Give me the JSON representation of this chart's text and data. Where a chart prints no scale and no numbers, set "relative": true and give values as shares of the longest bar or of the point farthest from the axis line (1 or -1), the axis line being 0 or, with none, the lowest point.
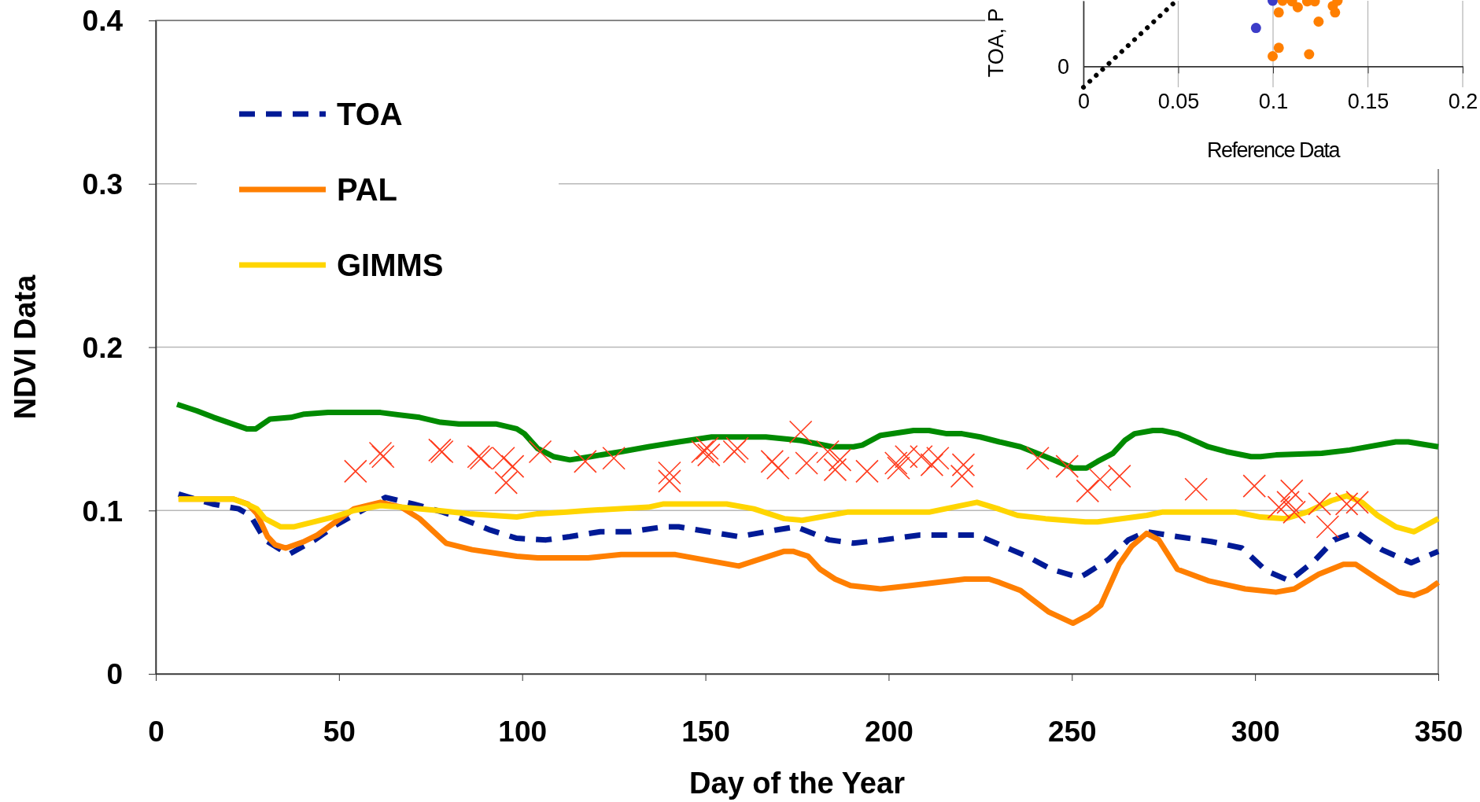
{
  "chart_data": [
    {
      "type": "line",
      "xlabel": "Day of the Year",
      "ylabel": "NDVI Data",
      "xlim": [
        0,
        350
      ],
      "ylim": [
        0,
        0.4
      ],
      "xticks": [
        0,
        50,
        100,
        150,
        200,
        250,
        300,
        350
      ],
      "yticks": [
        0,
        0.1,
        0.2,
        0.3,
        0.4
      ],
      "grid": "y",
      "legend": "top left",
      "series": [
        {
          "color": "#008a00",
          "line_style": "solid",
          "x": [
            5.8,
            11.2,
            15.8,
            24.8,
            27.3,
            31.2,
            36.9,
            40.5,
            47,
            61.3,
            72,
            77.7,
            82.7,
            92.8,
            98.5,
            100.6,
            104.2,
            108.5,
            113,
            118.7,
            127,
            134.4,
            142.7,
            151.7,
            166.5,
            175.6,
            184.6,
            190.4,
            192.8,
            197.8,
            206.8,
            211,
            215.9,
            220,
            225,
            230.2,
            236,
            242.8,
            250.3,
            254,
            257,
            261.2,
            264.5,
            267.1,
            272.1,
            274.6,
            278.8,
            282.2,
            287.2,
            292.2,
            298.9,
            301.5,
            305.7,
            318.2,
            325.8,
            338.4,
            341.8,
            350
          ],
          "values": [
            0.165,
            0.161,
            0.157,
            0.15,
            0.15,
            0.156,
            0.157,
            0.159,
            0.16,
            0.16,
            0.157,
            0.154,
            0.153,
            0.153,
            0.15,
            0.147,
            0.138,
            0.133,
            0.131,
            0.133,
            0.136,
            0.139,
            0.142,
            0.145,
            0.145,
            0.143,
            0.139,
            0.139,
            0.14,
            0.146,
            0.149,
            0.149,
            0.147,
            0.147,
            0.145,
            0.142,
            0.139,
            0.133,
            0.126,
            0.126,
            0.13,
            0.135,
            0.143,
            0.147,
            0.149,
            0.149,
            0.147,
            0.144,
            0.139,
            0.136,
            0.133,
            0.133,
            0.134,
            0.135,
            0.137,
            0.142,
            0.142,
            0.139
          ]
        },
        {
          "name": "TOA",
          "color": "#001a96",
          "line_style": "dashed",
          "x": [
            6.2,
            15.5,
            22.6,
            25.8,
            29.8,
            36.2,
            43.4,
            49.1,
            62.7,
            70.2,
            78.4,
            83.5,
            91.3,
            98.5,
            106.5,
            113,
            121.3,
            129.5,
            138.6,
            142.7,
            150.9,
            159.1,
            169,
            174.7,
            183.8,
            190.4,
            198.6,
            208.5,
            215.1,
            224.1,
            233.5,
            237.7,
            244.4,
            252,
            253.7,
            260,
            265.4,
            270.4,
            278.8,
            288,
            296.4,
            303.1,
            309.4,
            316.1,
            321.6,
            327.5,
            334.6,
            342.6,
            350
          ],
          "values": [
            0.11,
            0.104,
            0.101,
            0.097,
            0.082,
            0.073,
            0.082,
            0.091,
            0.108,
            0.104,
            0.099,
            0.095,
            0.088,
            0.083,
            0.082,
            0.084,
            0.087,
            0.087,
            0.09,
            0.09,
            0.087,
            0.084,
            0.088,
            0.09,
            0.082,
            0.08,
            0.082,
            0.085,
            0.085,
            0.085,
            0.076,
            0.072,
            0.064,
            0.059,
            0.061,
            0.07,
            0.082,
            0.087,
            0.084,
            0.081,
            0.077,
            0.063,
            0.057,
            0.069,
            0.082,
            0.087,
            0.076,
            0.068,
            0.075
          ]
        },
        {
          "name": "PAL",
          "color": "#ff7f00",
          "line_style": "solid",
          "x": [
            6.2,
            21.2,
            25.1,
            27.6,
            30.5,
            32.6,
            35.5,
            40.5,
            44.1,
            48.4,
            54.1,
            61.3,
            67,
            72,
            79.2,
            86.3,
            98.5,
            104.2,
            110,
            118,
            127,
            141.8,
            159.1,
            163.2,
            171.5,
            173.9,
            178,
            181.3,
            185.4,
            189.6,
            197.8,
            206,
            220.8,
            227.4,
            230.2,
            236,
            243.6,
            250.3,
            254.5,
            257.9,
            262.9,
            266.3,
            270.4,
            273.7,
            278.8,
            287.2,
            297.3,
            305.7,
            310.7,
            317.4,
            324.1,
            327.5,
            334.2,
            339.2,
            343.4,
            346.8,
            350
          ],
          "values": [
            0.107,
            0.107,
            0.104,
            0.098,
            0.084,
            0.079,
            0.077,
            0.081,
            0.085,
            0.092,
            0.101,
            0.105,
            0.102,
            0.095,
            0.08,
            0.076,
            0.072,
            0.071,
            0.071,
            0.071,
            0.073,
            0.073,
            0.066,
            0.069,
            0.075,
            0.075,
            0.072,
            0.064,
            0.058,
            0.054,
            0.052,
            0.054,
            0.058,
            0.058,
            0.056,
            0.051,
            0.038,
            0.031,
            0.036,
            0.042,
            0.067,
            0.078,
            0.086,
            0.082,
            0.064,
            0.057,
            0.052,
            0.05,
            0.052,
            0.061,
            0.067,
            0.067,
            0.057,
            0.05,
            0.048,
            0.051,
            0.056
          ]
        },
        {
          "name": "GIMMS",
          "color": "#ffd500",
          "line_style": "solid",
          "x": [
            6.2,
            21.2,
            24.8,
            27.6,
            29.8,
            34.1,
            37.6,
            48.4,
            54.1,
            61.3,
            67,
            77,
            85.6,
            98.5,
            104.2,
            112.2,
            118,
            134.4,
            138.6,
            155.8,
            163.2,
            171.5,
            176.4,
            188.7,
            206,
            211,
            224.1,
            229.9,
            235.2,
            242.8,
            253.7,
            257,
            270.4,
            274.6,
            294.8,
            301.5,
            308.2,
            314.1,
            320.8,
            325,
            329.2,
            333.4,
            338.4,
            343.4,
            350
          ],
          "values": [
            0.107,
            0.107,
            0.104,
            0.101,
            0.095,
            0.09,
            0.09,
            0.096,
            0.1,
            0.103,
            0.102,
            0.1,
            0.098,
            0.096,
            0.098,
            0.099,
            0.1,
            0.102,
            0.104,
            0.104,
            0.101,
            0.095,
            0.094,
            0.099,
            0.099,
            0.099,
            0.105,
            0.101,
            0.097,
            0.095,
            0.093,
            0.093,
            0.097,
            0.099,
            0.099,
            0.096,
            0.095,
            0.099,
            0.106,
            0.109,
            0.105,
            0.097,
            0.09,
            0.087,
            0.095
          ]
        },
        {
          "type": "scatter",
          "color": "#ff3c1e",
          "marker": "cross",
          "x": [
            54.5,
            61.3,
            62,
            77.5,
            78.1,
            88.1,
            88.8,
            94.9,
            95.6,
            97.4,
            104.9,
            117.2,
            125,
            140.2,
            140.2,
            149.2,
            150.5,
            150.9,
            157.9,
            158.7,
            168.2,
            169.8,
            176,
            177.6,
            183.4,
            185.4,
            186.7,
            194.1,
            202,
            202.7,
            204.8,
            208.9,
            211.8,
            213.4,
            220,
            220.4,
            240.7,
            248.7,
            254.3,
            257.7,
            263,
            283.9,
            299.8,
            306.5,
            309,
            310,
            310.7,
            317.6,
            319.8,
            325,
            327.9
          ],
          "values": [
            0.124,
            0.135,
            0.133,
            0.137,
            0.136,
            0.133,
            0.132,
            0.132,
            0.117,
            0.127,
            0.136,
            0.13,
            0.132,
            0.123,
            0.118,
            0.136,
            0.138,
            0.134,
            0.136,
            0.138,
            0.13,
            0.126,
            0.148,
            0.129,
            0.136,
            0.125,
            0.131,
            0.124,
            0.129,
            0.126,
            0.133,
            0.133,
            0.128,
            0.132,
            0.121,
            0.128,
            0.132,
            0.127,
            0.112,
            0.119,
            0.121,
            0.113,
            0.115,
            0.102,
            0.105,
            0.112,
            0.099,
            0.104,
            0.09,
            0.104,
            0.105
          ]
        }
      ]
    },
    {
      "type": "scatter",
      "xlabel": "Reference Data",
      "ylabel": "TOA, P",
      "xlim": [
        0,
        0.2
      ],
      "relative": true,
      "xticks": [
        0,
        0.05,
        0.1,
        0.15,
        0.2
      ],
      "annotations": [
        "0"
      ],
      "grid": "x",
      "series": [
        {
          "type": "line",
          "color": "#000000",
          "line_style": "dotted",
          "x": [
            0,
            0.0476
          ],
          "values": [
            -0.32,
            0.964
          ]
        },
        {
          "color": "#3c3cc8",
          "marker": "circle",
          "x": [
            0.091,
            0.0998
          ],
          "values": [
            0.585,
            1
          ]
        },
        {
          "color": "#ff7f00",
          "marker": "circle",
          "x": [
            0.0998,
            0.103,
            0.119,
            0.103,
            0.124,
            0.113,
            0.1327,
            0.1315,
            0.105,
            0.11,
            0.118,
            0.122,
            0.134
          ],
          "values": [
            0.154,
            0.282,
            0.184,
            0.822,
            0.682,
            0.902,
            0.822,
            0.92,
            1,
            0.991,
            0.991,
            0.991,
            1
          ]
        }
      ]
    }
  ]
}
